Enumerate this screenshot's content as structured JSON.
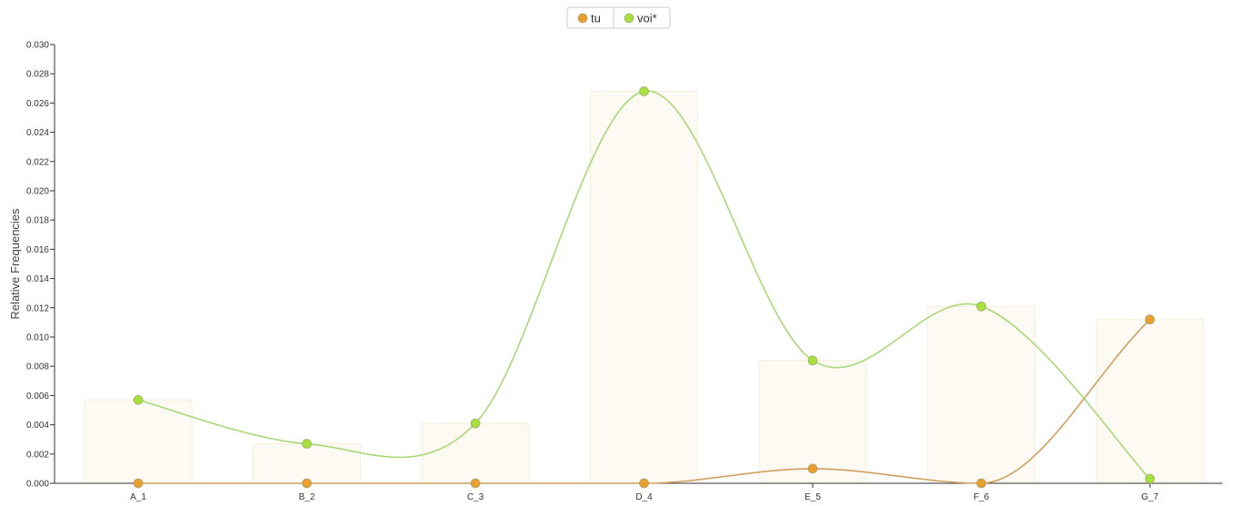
{
  "chart_data": {
    "type": "line",
    "ylabel": "Relative Frequencies",
    "xlabel": "",
    "categories": [
      "A_1",
      "B_2",
      "C_3",
      "D_4",
      "E_5",
      "F_6",
      "G_7"
    ],
    "ylim": [
      0,
      0.03
    ],
    "yticks": [
      "0.000",
      "0.002",
      "0.004",
      "0.006",
      "0.008",
      "0.010",
      "0.012",
      "0.014",
      "0.016",
      "0.018",
      "0.020",
      "0.022",
      "0.024",
      "0.026",
      "0.028",
      "0.030"
    ],
    "grid": false,
    "legend_position": "top-center",
    "bars": {
      "description_values": [
        0.0057,
        0.0027,
        0.0041,
        0.0268,
        0.0084,
        0.0121,
        0.0112
      ],
      "color": "#fdfaf3"
    },
    "series": [
      {
        "name": "tu",
        "color": "#d0a060",
        "marker_color": "#e8a030",
        "values": [
          0.0,
          0.0,
          0.0,
          0.0,
          0.001,
          0.0,
          0.0112
        ]
      },
      {
        "name": "voi*",
        "color": "#a8d878",
        "marker_color": "#a8e040",
        "values": [
          0.0057,
          0.0027,
          0.0041,
          0.0268,
          0.0084,
          0.0121,
          0.0003
        ]
      }
    ]
  }
}
